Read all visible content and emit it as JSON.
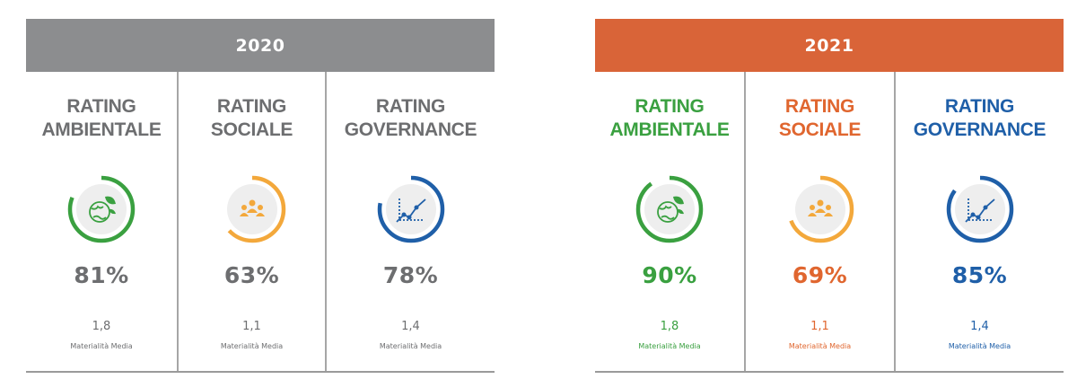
{
  "colors": {
    "grey_header": "#8c8d8f",
    "orange_header": "#d96438",
    "grey_text": "#6d6e70",
    "green": "#3aa040",
    "orange_ring": "#f3a83b",
    "blue": "#1f5fa8",
    "orange_text": "#e0662f",
    "icon_bg": "#eeeeee"
  },
  "panel_2020": {
    "year": "2020",
    "columns": [
      {
        "title_line1": "RATING",
        "title_line2": "AMBIENTALE",
        "percent": "81%",
        "fraction": 0.81,
        "materiality": "1,8",
        "materiality_label": "Materialità Media",
        "icon": "globe-leaf-icon",
        "ring_color": "#3aa040"
      },
      {
        "title_line1": "RATING",
        "title_line2": "SOCIALE",
        "percent": "63%",
        "fraction": 0.63,
        "materiality": "1,1",
        "materiality_label": "Materialità Media",
        "icon": "people-group-icon",
        "ring_color": "#f3a83b"
      },
      {
        "title_line1": "RATING",
        "title_line2": "GOVERNANCE",
        "percent": "78%",
        "fraction": 0.78,
        "materiality": "1,4",
        "materiality_label": "Materialità Media",
        "icon": "growth-chart-icon",
        "ring_color": "#1f5fa8"
      }
    ]
  },
  "panel_2021": {
    "year": "2021",
    "columns": [
      {
        "title_line1": "RATING",
        "title_line2": "AMBIENTALE",
        "percent": "90%",
        "fraction": 0.9,
        "materiality": "1,8",
        "materiality_label": "Materialità Media",
        "icon": "globe-leaf-icon",
        "ring_color": "#3aa040"
      },
      {
        "title_line1": "RATING",
        "title_line2": "SOCIALE",
        "percent": "69%",
        "fraction": 0.69,
        "materiality": "1,1",
        "materiality_label": "Materialità Media",
        "icon": "people-group-icon",
        "ring_color": "#f3a83b"
      },
      {
        "title_line1": "RATING",
        "title_line2": "GOVERNANCE",
        "percent": "85%",
        "fraction": 0.85,
        "materiality": "1,4",
        "materiality_label": "Materialità Media",
        "icon": "growth-chart-icon",
        "ring_color": "#1f5fa8"
      }
    ]
  }
}
